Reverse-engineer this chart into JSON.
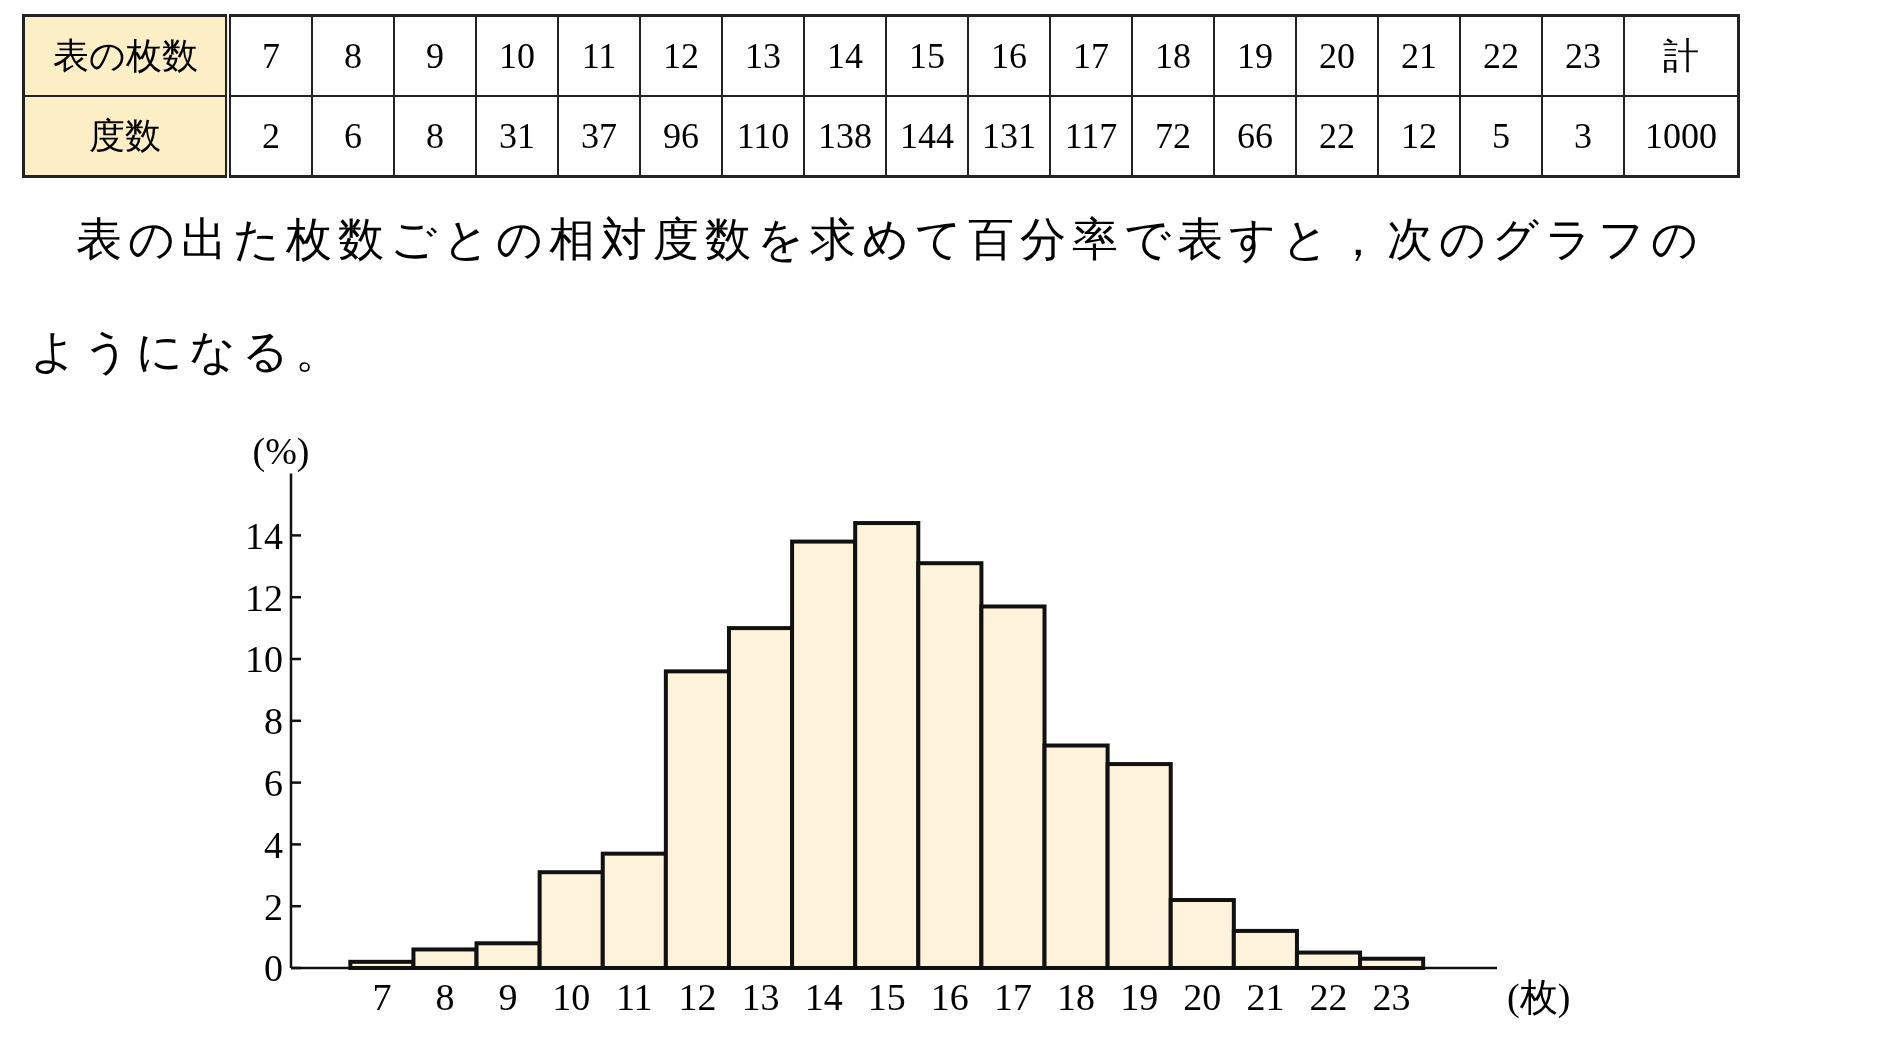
{
  "chart_data": [
    {
      "type": "heatmap",
      "xlabel": "表の枚数",
      "categories": [
        "7",
        "8",
        "9",
        "10",
        "11",
        "12",
        "13",
        "14",
        "15",
        "16",
        "17",
        "18",
        "19",
        "20",
        "21",
        "22",
        "23",
        "計"
      ],
      "y_categories": [
        "度数"
      ],
      "cells": [
        [
          2,
          6,
          8,
          31,
          37,
          96,
          110,
          138,
          144,
          131,
          117,
          72,
          66,
          22,
          12,
          5,
          3,
          1000
        ]
      ],
      "data_labels": true
    },
    {
      "type": "histogram",
      "title": "表の出た枚数ごとの相対度数を求めて百分率で表すと，次のグラフのようになる。",
      "bins": [
        6.5,
        7.5,
        8.5,
        9.5,
        10.5,
        11.5,
        12.5,
        13.5,
        14.5,
        15.5,
        16.5,
        17.5,
        18.5,
        19.5,
        20.5,
        21.5,
        22.5,
        23.5
      ],
      "values": [
        0.2,
        0.6,
        0.8,
        3.1,
        3.7,
        9.6,
        11.0,
        13.8,
        14.4,
        13.1,
        11.7,
        7.2,
        6.6,
        2.2,
        1.2,
        0.5,
        0.3
      ],
      "color": "#fdf3da",
      "xlim": [
        5.56,
        24.67
      ],
      "ylim": [
        0,
        16
      ],
      "xticks": [
        7,
        8,
        9,
        10,
        11,
        12,
        13,
        14,
        15,
        16,
        17,
        18,
        19,
        20,
        21,
        22,
        23
      ],
      "yticks": [
        0,
        2,
        4,
        6,
        8,
        10,
        12,
        14
      ],
      "xlabel": "(枚)",
      "ylabel": "(%)",
      "grid": false
    }
  ]
}
